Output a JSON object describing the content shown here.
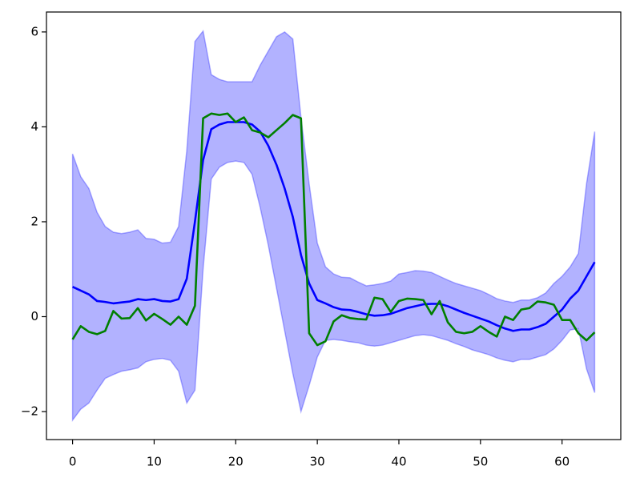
{
  "chart_data": {
    "type": "line",
    "x": [
      0,
      1,
      2,
      3,
      4,
      5,
      6,
      7,
      8,
      9,
      10,
      11,
      12,
      13,
      14,
      15,
      16,
      17,
      18,
      19,
      20,
      21,
      22,
      23,
      24,
      25,
      26,
      27,
      28,
      29,
      30,
      31,
      32,
      33,
      34,
      35,
      36,
      37,
      38,
      39,
      40,
      41,
      42,
      43,
      44,
      45,
      46,
      47,
      48,
      49,
      50,
      51,
      52,
      53,
      54,
      55,
      56,
      57,
      58,
      59,
      60,
      61,
      62,
      63,
      64
    ],
    "band": {
      "color": "#0000ff",
      "alpha": 0.3,
      "upper": [
        3.43,
        2.95,
        2.7,
        2.2,
        1.9,
        1.78,
        1.75,
        1.78,
        1.83,
        1.65,
        1.63,
        1.55,
        1.57,
        1.9,
        3.5,
        5.8,
        6.02,
        5.1,
        5.0,
        4.95,
        4.95,
        4.95,
        4.95,
        5.3,
        5.6,
        5.9,
        6.0,
        5.85,
        4.2,
        2.8,
        1.55,
        1.05,
        0.9,
        0.83,
        0.82,
        0.73,
        0.65,
        0.67,
        0.7,
        0.75,
        0.9,
        0.93,
        0.97,
        0.96,
        0.93,
        0.85,
        0.77,
        0.7,
        0.65,
        0.6,
        0.55,
        0.47,
        0.38,
        0.33,
        0.3,
        0.35,
        0.35,
        0.4,
        0.5,
        0.7,
        0.85,
        1.05,
        1.33,
        2.8,
        3.9
      ],
      "lower": [
        -2.18,
        -1.95,
        -1.82,
        -1.55,
        -1.3,
        -1.22,
        -1.15,
        -1.12,
        -1.08,
        -0.95,
        -0.9,
        -0.88,
        -0.92,
        -1.15,
        -1.82,
        -1.55,
        1.0,
        2.9,
        3.15,
        3.25,
        3.28,
        3.25,
        3.0,
        2.3,
        1.5,
        0.6,
        -0.3,
        -1.2,
        -2.0,
        -1.45,
        -0.85,
        -0.5,
        -0.48,
        -0.5,
        -0.53,
        -0.55,
        -0.6,
        -0.62,
        -0.6,
        -0.55,
        -0.5,
        -0.45,
        -0.4,
        -0.38,
        -0.4,
        -0.45,
        -0.5,
        -0.57,
        -0.63,
        -0.7,
        -0.75,
        -0.8,
        -0.87,
        -0.92,
        -0.95,
        -0.9,
        -0.9,
        -0.85,
        -0.8,
        -0.68,
        -0.5,
        -0.28,
        -0.25,
        -1.1,
        -1.6
      ]
    },
    "series": [
      {
        "color": "#0000ff",
        "values": [
          0.63,
          0.55,
          0.47,
          0.33,
          0.31,
          0.28,
          0.3,
          0.32,
          0.37,
          0.35,
          0.37,
          0.33,
          0.32,
          0.37,
          0.8,
          2.0,
          3.3,
          3.95,
          4.05,
          4.1,
          4.1,
          4.1,
          4.05,
          3.9,
          3.6,
          3.2,
          2.7,
          2.1,
          1.3,
          0.7,
          0.35,
          0.28,
          0.2,
          0.15,
          0.14,
          0.1,
          0.05,
          0.02,
          0.03,
          0.06,
          0.12,
          0.18,
          0.22,
          0.26,
          0.27,
          0.27,
          0.22,
          0.15,
          0.08,
          0.02,
          -0.04,
          -0.1,
          -0.18,
          -0.25,
          -0.3,
          -0.27,
          -0.27,
          -0.22,
          -0.15,
          0.0,
          0.15,
          0.38,
          0.55,
          0.85,
          1.15
        ]
      },
      {
        "color": "#007f00",
        "values": [
          -0.48,
          -0.2,
          -0.32,
          -0.37,
          -0.3,
          0.12,
          -0.04,
          -0.03,
          0.18,
          -0.08,
          0.06,
          -0.05,
          -0.17,
          0.0,
          -0.17,
          0.23,
          4.18,
          4.28,
          4.25,
          4.28,
          4.1,
          4.2,
          3.93,
          3.88,
          3.78,
          3.93,
          4.08,
          4.25,
          4.18,
          -0.35,
          -0.6,
          -0.52,
          -0.1,
          0.03,
          -0.03,
          -0.05,
          -0.06,
          0.4,
          0.37,
          0.1,
          0.33,
          0.38,
          0.37,
          0.35,
          0.05,
          0.33,
          -0.12,
          -0.32,
          -0.35,
          -0.32,
          -0.2,
          -0.32,
          -0.42,
          0.0,
          -0.07,
          0.15,
          0.18,
          0.32,
          0.3,
          0.25,
          -0.07,
          -0.07,
          -0.35,
          -0.5,
          -0.33
        ]
      }
    ],
    "xlim": [
      -3.2,
      67.2
    ],
    "xticks": [
      0,
      10,
      20,
      30,
      40,
      50,
      60
    ],
    "ylim": [
      -2.59,
      6.42
    ],
    "yticks": [
      -2,
      0,
      2,
      4,
      6
    ],
    "grid": false
  }
}
